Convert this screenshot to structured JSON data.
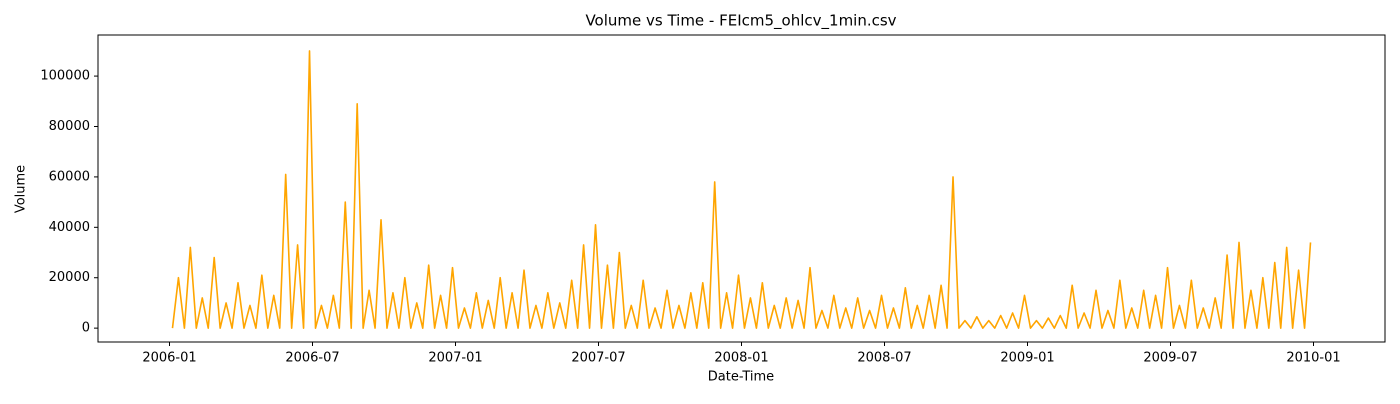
{
  "chart_data": {
    "type": "line",
    "title": "Volume vs Time - FEIcm5_ohlcv_1min.csv",
    "x_label": "Date-Time",
    "y_label": "Volume",
    "x": [
      "2006-01",
      "2006-01",
      "2006-01",
      "2006-01",
      "2006-02",
      "2006-02",
      "2006-02",
      "2006-02",
      "2006-03",
      "2006-03",
      "2006-03",
      "2006-03",
      "2006-04",
      "2006-04",
      "2006-04",
      "2006-04",
      "2006-05",
      "2006-05",
      "2006-05",
      "2006-05",
      "2006-06",
      "2006-06",
      "2006-06",
      "2006-06",
      "2006-07",
      "2006-07",
      "2006-07",
      "2006-07",
      "2006-08",
      "2006-08",
      "2006-08",
      "2006-08",
      "2006-09",
      "2006-09",
      "2006-09",
      "2006-09",
      "2006-10",
      "2006-10",
      "2006-10",
      "2006-10",
      "2006-11",
      "2006-11",
      "2006-11",
      "2006-11",
      "2006-12",
      "2006-12",
      "2006-12",
      "2006-12",
      "2007-01",
      "2007-01",
      "2007-01",
      "2007-01",
      "2007-02",
      "2007-02",
      "2007-02",
      "2007-02",
      "2007-03",
      "2007-03",
      "2007-03",
      "2007-03",
      "2007-04",
      "2007-04",
      "2007-04",
      "2007-04",
      "2007-05",
      "2007-05",
      "2007-05",
      "2007-05",
      "2007-06",
      "2007-06",
      "2007-06",
      "2007-06",
      "2007-07",
      "2007-07",
      "2007-07",
      "2007-07",
      "2007-08",
      "2007-08",
      "2007-08",
      "2007-08",
      "2007-09",
      "2007-09",
      "2007-09",
      "2007-09",
      "2007-10",
      "2007-10",
      "2007-10",
      "2007-10",
      "2007-11",
      "2007-11",
      "2007-11",
      "2007-11",
      "2007-12",
      "2007-12",
      "2007-12",
      "2007-12",
      "2008-01",
      "2008-01",
      "2008-01",
      "2008-01",
      "2008-02",
      "2008-02",
      "2008-02",
      "2008-02",
      "2008-03",
      "2008-03",
      "2008-03",
      "2008-03",
      "2008-04",
      "2008-04",
      "2008-04",
      "2008-04",
      "2008-05",
      "2008-05",
      "2008-05",
      "2008-05",
      "2008-06",
      "2008-06",
      "2008-06",
      "2008-06",
      "2008-07",
      "2008-07",
      "2008-07",
      "2008-07",
      "2008-08",
      "2008-08",
      "2008-08",
      "2008-08",
      "2008-09",
      "2008-09",
      "2008-09",
      "2008-09",
      "2008-10",
      "2008-10",
      "2008-10",
      "2008-10",
      "2008-11",
      "2008-11",
      "2008-11",
      "2008-11",
      "2008-12",
      "2008-12",
      "2008-12",
      "2008-12",
      "2009-01",
      "2009-01",
      "2009-01",
      "2009-01",
      "2009-02",
      "2009-02",
      "2009-02",
      "2009-02",
      "2009-03",
      "2009-03",
      "2009-03",
      "2009-03",
      "2009-04",
      "2009-04",
      "2009-04",
      "2009-04",
      "2009-05",
      "2009-05",
      "2009-05",
      "2009-05",
      "2009-06",
      "2009-06",
      "2009-06",
      "2009-06",
      "2009-07",
      "2009-07",
      "2009-07",
      "2009-07",
      "2009-08",
      "2009-08",
      "2009-08",
      "2009-08",
      "2009-09",
      "2009-09",
      "2009-09",
      "2009-09",
      "2009-10",
      "2009-10",
      "2009-10",
      "2009-10",
      "2009-11",
      "2009-11",
      "2009-11",
      "2009-11",
      "2009-12",
      "2009-12",
      "2009-12",
      "2009-12"
    ],
    "series": [
      {
        "name": "Volume",
        "color": "#ffa500",
        "values": [
          0,
          20000,
          0,
          32000,
          0,
          12000,
          0,
          28000,
          0,
          10000,
          0,
          18000,
          0,
          9000,
          0,
          21000,
          0,
          13000,
          0,
          61000,
          0,
          33000,
          0,
          110000,
          0,
          9000,
          0,
          13000,
          0,
          50000,
          0,
          89000,
          0,
          15000,
          0,
          43000,
          0,
          14000,
          0,
          20000,
          0,
          10000,
          0,
          25000,
          0,
          13000,
          0,
          24000,
          0,
          8000,
          0,
          14000,
          0,
          11000,
          0,
          20000,
          0,
          14000,
          0,
          23000,
          0,
          9000,
          0,
          14000,
          0,
          10000,
          0,
          19000,
          0,
          33000,
          0,
          41000,
          0,
          25000,
          0,
          30000,
          0,
          9000,
          0,
          19000,
          0,
          8000,
          0,
          15000,
          0,
          9000,
          0,
          14000,
          0,
          18000,
          0,
          58000,
          0,
          14000,
          0,
          21000,
          0,
          12000,
          0,
          18000,
          0,
          9000,
          0,
          12000,
          0,
          11000,
          0,
          24000,
          0,
          7000,
          0,
          13000,
          0,
          8000,
          0,
          12000,
          0,
          7000,
          0,
          13000,
          0,
          8000,
          0,
          16000,
          0,
          9000,
          0,
          13000,
          0,
          17000,
          0,
          60000,
          0,
          3000,
          0,
          4500,
          0,
          3000,
          0,
          5000,
          0,
          6000,
          0,
          13000,
          0,
          3000,
          0,
          4000,
          0,
          5000,
          0,
          17000,
          0,
          6000,
          0,
          15000,
          0,
          7000,
          0,
          19000,
          0,
          8000,
          0,
          15000,
          0,
          13000,
          0,
          24000,
          0,
          9000,
          0,
          19000,
          0,
          8000,
          0,
          12000,
          0,
          29000,
          0,
          34000,
          0,
          15000,
          0,
          20000,
          0,
          26000,
          0,
          32000,
          0,
          23000,
          0,
          34000
        ]
      }
    ],
    "xlim": [
      "2005-10",
      "2010-04"
    ],
    "xticks": [
      "2006-01",
      "2006-07",
      "2007-01",
      "2007-07",
      "2008-01",
      "2008-07",
      "2009-01",
      "2009-07",
      "2010-01"
    ],
    "ylim": [
      -5500,
      116300
    ],
    "yticks": [
      0,
      20000,
      40000,
      60000,
      80000,
      100000
    ],
    "grid": false
  }
}
